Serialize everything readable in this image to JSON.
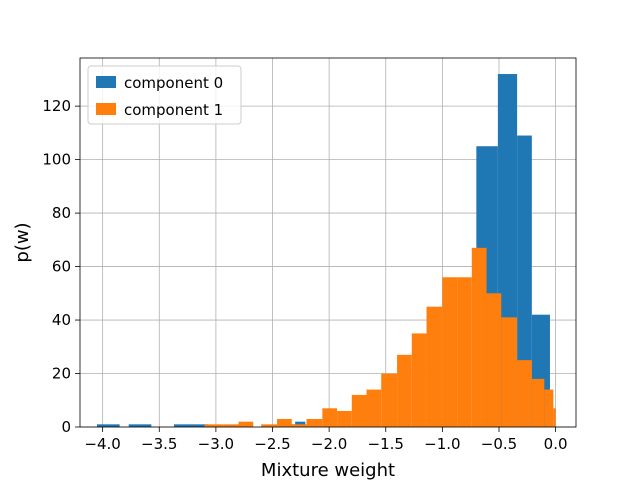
{
  "chart_data": {
    "type": "bar",
    "title": "",
    "xlabel": "Mixture weight",
    "ylabel": "p(w)",
    "xlim": [
      -4.2,
      0.18
    ],
    "ylim": [
      0,
      138
    ],
    "grid": true,
    "legend_position": "top-left",
    "x_ticks": [
      -4.0,
      -3.5,
      -3.0,
      -2.5,
      -2.0,
      -1.5,
      -1.0,
      -0.5,
      0.0
    ],
    "x_tick_labels": [
      "−4.0",
      "−3.5",
      "−3.0",
      "−2.5",
      "−2.0",
      "−1.5",
      "−1.0",
      "−0.5",
      "0.0"
    ],
    "y_ticks": [
      0,
      20,
      40,
      60,
      80,
      100,
      120
    ],
    "y_tick_labels": [
      "0",
      "20",
      "40",
      "60",
      "80",
      "100",
      "120"
    ],
    "series": [
      {
        "name": "component 0",
        "color": "#1f77b4",
        "bins": [
          {
            "x0": -4.05,
            "x1": -3.85,
            "count": 1
          },
          {
            "x0": -3.77,
            "x1": -3.57,
            "count": 1
          },
          {
            "x0": -3.37,
            "x1": -3.07,
            "count": 1
          },
          {
            "x0": -2.38,
            "x1": -2.3,
            "count": 1
          },
          {
            "x0": -2.3,
            "x1": -2.21,
            "count": 2
          },
          {
            "x0": -0.7,
            "x1": -0.51,
            "count": 105
          },
          {
            "x0": -0.51,
            "x1": -0.34,
            "count": 132
          },
          {
            "x0": -0.34,
            "x1": -0.21,
            "count": 109
          },
          {
            "x0": -0.21,
            "x1": -0.05,
            "count": 42
          }
        ]
      },
      {
        "name": "component 1",
        "color": "#ff7f0e",
        "bins": [
          {
            "x0": -3.1,
            "x1": -2.93,
            "count": 1
          },
          {
            "x0": -2.93,
            "x1": -2.8,
            "count": 1
          },
          {
            "x0": -2.8,
            "x1": -2.67,
            "count": 2
          },
          {
            "x0": -2.6,
            "x1": -2.46,
            "count": 1
          },
          {
            "x0": -2.46,
            "x1": -2.33,
            "count": 3
          },
          {
            "x0": -2.33,
            "x1": -2.2,
            "count": 1
          },
          {
            "x0": -2.2,
            "x1": -2.06,
            "count": 3
          },
          {
            "x0": -2.06,
            "x1": -1.93,
            "count": 7
          },
          {
            "x0": -1.93,
            "x1": -1.8,
            "count": 6
          },
          {
            "x0": -1.8,
            "x1": -1.67,
            "count": 12
          },
          {
            "x0": -1.67,
            "x1": -1.54,
            "count": 14
          },
          {
            "x0": -1.54,
            "x1": -1.4,
            "count": 20
          },
          {
            "x0": -1.4,
            "x1": -1.27,
            "count": 27
          },
          {
            "x0": -1.27,
            "x1": -1.14,
            "count": 35
          },
          {
            "x0": -1.14,
            "x1": -1.0,
            "count": 45
          },
          {
            "x0": -1.0,
            "x1": -0.87,
            "count": 56
          },
          {
            "x0": -0.87,
            "x1": -0.74,
            "count": 56
          },
          {
            "x0": -0.74,
            "x1": -0.61,
            "count": 67
          },
          {
            "x0": -0.61,
            "x1": -0.48,
            "count": 50
          },
          {
            "x0": -0.48,
            "x1": -0.34,
            "count": 41
          },
          {
            "x0": -0.34,
            "x1": -0.21,
            "count": 25
          },
          {
            "x0": -0.21,
            "x1": -0.1,
            "count": 18
          },
          {
            "x0": -0.1,
            "x1": -0.02,
            "count": 14
          },
          {
            "x0": -0.02,
            "x1": 0.0,
            "count": 7
          }
        ]
      }
    ]
  }
}
